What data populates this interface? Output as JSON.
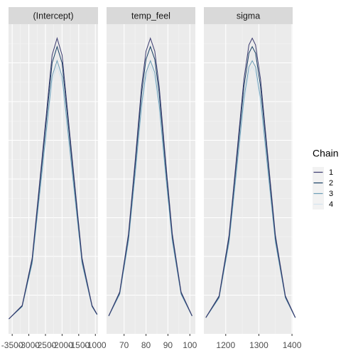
{
  "chart_data": [
    {
      "type": "density",
      "title": "(Intercept)",
      "legend_title": "Chain",
      "x": [
        -3600,
        -3200,
        -2900,
        -2600,
        -2300,
        -2150,
        -2000,
        -1700,
        -1400,
        -1100,
        -950
      ],
      "xlim": [
        -3610,
        -920
      ],
      "xticks": [
        -3500,
        -3000,
        -2500,
        -2000,
        -1500,
        -1000
      ],
      "ylim": [
        -0.05,
        1.05
      ],
      "grid": true,
      "series": [
        {
          "name": "1",
          "color": "#3b3b6f",
          "values": [
            0.003,
            0.051,
            0.219,
            0.577,
            0.94,
            1.0,
            0.94,
            0.577,
            0.219,
            0.051,
            0.02
          ]
        },
        {
          "name": "2",
          "color": "#173f63",
          "values": [
            0.003,
            0.049,
            0.212,
            0.56,
            0.912,
            0.97,
            0.912,
            0.56,
            0.212,
            0.049,
            0.019
          ]
        },
        {
          "name": "3",
          "color": "#6c9db6",
          "values": [
            0.003,
            0.047,
            0.201,
            0.531,
            0.865,
            0.92,
            0.865,
            0.531,
            0.201,
            0.047,
            0.018
          ]
        },
        {
          "name": "4",
          "color": "#d4e4ee",
          "values": [
            0.003,
            0.046,
            0.197,
            0.519,
            0.846,
            0.9,
            0.846,
            0.519,
            0.197,
            0.046,
            0.018
          ]
        }
      ]
    },
    {
      "type": "density",
      "title": "temp_feel",
      "x": [
        63,
        68,
        72,
        75,
        78,
        80,
        82,
        84,
        86,
        89,
        92,
        96,
        101
      ],
      "xlim": [
        62,
        102.5
      ],
      "xticks": [
        70,
        80,
        90,
        100
      ],
      "ylim": [
        -0.05,
        1.05
      ],
      "grid": true,
      "series": [
        {
          "name": "1",
          "color": "#3b3b6f",
          "values": [
            0.014,
            0.099,
            0.305,
            0.56,
            0.83,
            0.954,
            1.0,
            0.954,
            0.83,
            0.56,
            0.305,
            0.099,
            0.014
          ]
        },
        {
          "name": "2",
          "color": "#173f63",
          "values": [
            0.014,
            0.096,
            0.296,
            0.543,
            0.805,
            0.925,
            0.97,
            0.925,
            0.805,
            0.543,
            0.296,
            0.096,
            0.014
          ]
        },
        {
          "name": "3",
          "color": "#6c9db6",
          "values": [
            0.013,
            0.091,
            0.281,
            0.515,
            0.764,
            0.878,
            0.92,
            0.878,
            0.764,
            0.515,
            0.281,
            0.091,
            0.013
          ]
        },
        {
          "name": "4",
          "color": "#d4e4ee",
          "values": [
            0.013,
            0.089,
            0.275,
            0.504,
            0.747,
            0.859,
            0.9,
            0.859,
            0.747,
            0.504,
            0.275,
            0.089,
            0.013
          ]
        }
      ]
    },
    {
      "type": "density",
      "title": "sigma",
      "x": [
        1140,
        1180,
        1210,
        1235,
        1255,
        1270,
        1280,
        1290,
        1305,
        1325,
        1350,
        1380,
        1410
      ],
      "xlim": [
        1134,
        1402
      ],
      "xticks": [
        1200,
        1300,
        1400
      ],
      "ylim": [
        -0.05,
        1.05
      ],
      "grid": true,
      "series": [
        {
          "name": "1",
          "color": "#3b3b6f",
          "values": [
            0.008,
            0.085,
            0.3,
            0.607,
            0.855,
            0.976,
            1.0,
            0.976,
            0.855,
            0.607,
            0.3,
            0.085,
            0.008
          ]
        },
        {
          "name": "2",
          "color": "#173f63",
          "values": [
            0.008,
            0.082,
            0.291,
            0.589,
            0.829,
            0.947,
            0.97,
            0.947,
            0.829,
            0.589,
            0.291,
            0.082,
            0.008
          ]
        },
        {
          "name": "3",
          "color": "#6c9db6",
          "values": [
            0.007,
            0.078,
            0.276,
            0.558,
            0.787,
            0.898,
            0.92,
            0.898,
            0.787,
            0.558,
            0.276,
            0.078,
            0.007
          ]
        },
        {
          "name": "4",
          "color": "#d4e4ee",
          "values": [
            0.007,
            0.077,
            0.27,
            0.546,
            0.77,
            0.878,
            0.9,
            0.878,
            0.77,
            0.546,
            0.27,
            0.077,
            0.007
          ]
        }
      ]
    }
  ]
}
